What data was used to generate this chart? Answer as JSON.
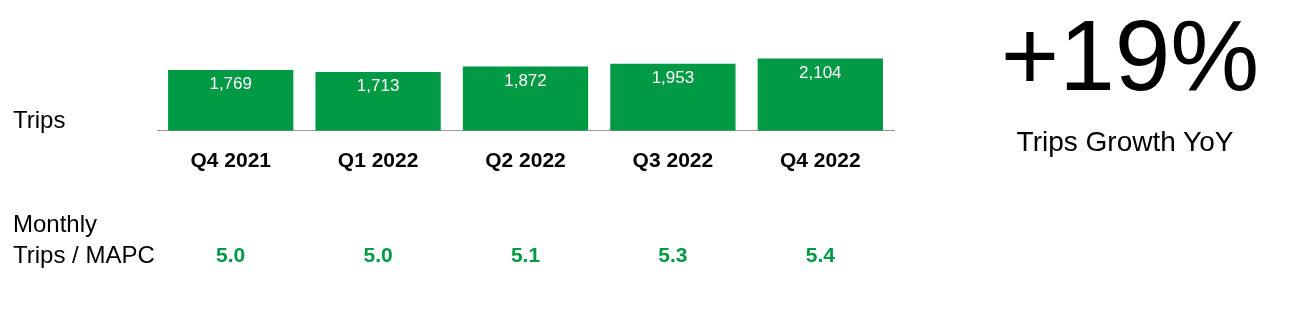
{
  "chart_data": {
    "type": "bar",
    "title": "+19%",
    "subtitle": "Trips Growth YoY",
    "ylabel": "Trips",
    "categories": [
      "Q4 2021",
      "Q1 2022",
      "Q2 2022",
      "Q3 2022",
      "Q4 2022"
    ],
    "values": [
      1769,
      1713,
      1872,
      1953,
      2104
    ],
    "color": "#009a44",
    "value_labels": [
      "1,769",
      "1,713",
      "1,872",
      "1,953",
      "2,104"
    ],
    "tick_labels": "x",
    "grid": false,
    "legend": false,
    "annotations": [
      "Monthly\nTrips / MAPC",
      "5.0",
      "5.0",
      "5.1",
      "5.3",
      "5.4"
    ]
  }
}
